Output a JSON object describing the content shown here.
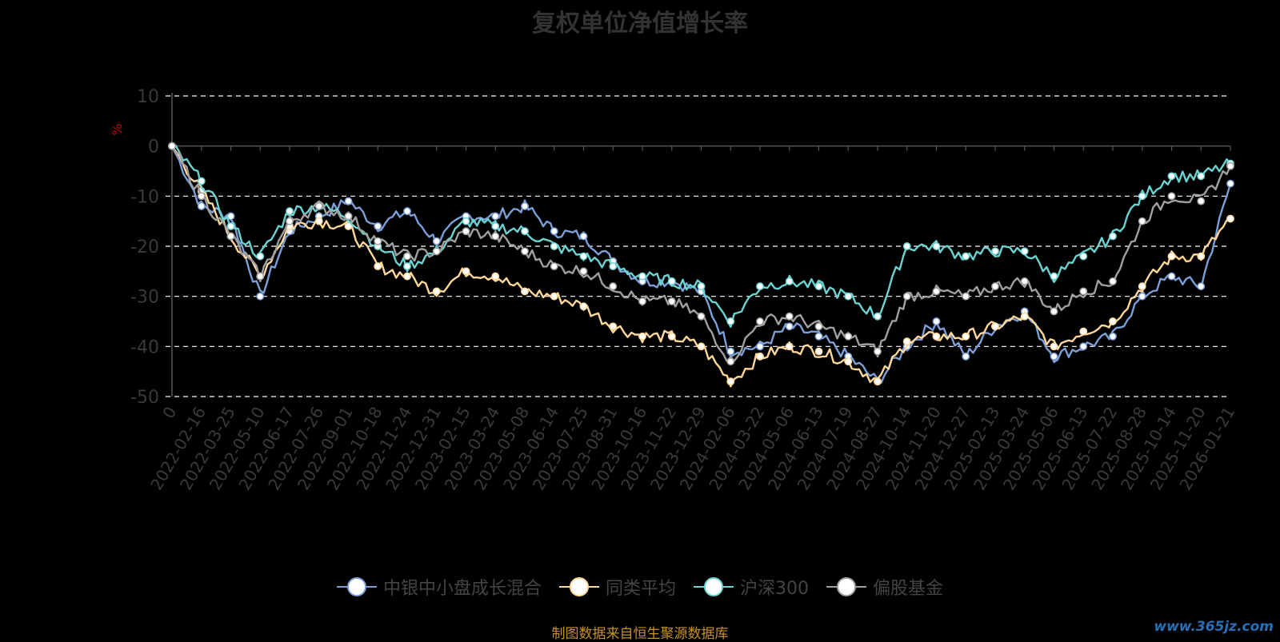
{
  "chart_data": {
    "type": "line",
    "title": "复权单位净值增长率",
    "ylabel": "%",
    "ylim": [
      -50,
      10
    ],
    "yticks": [
      10,
      0,
      -10,
      -20,
      -30,
      -40,
      -50
    ],
    "grid": true,
    "legend_position": "bottom",
    "x_tick_labels": [
      "0",
      "2022-02-16",
      "2022-03-25",
      "2022-05-10",
      "2022-06-17",
      "2022-07-26",
      "2022-09-01",
      "2022-10-18",
      "2022-11-24",
      "2022-12-31",
      "2023-02-15",
      "2023-03-24",
      "2023-05-08",
      "2023-06-14",
      "2023-07-25",
      "2023-08-31",
      "2023-10-16",
      "2023-11-22",
      "2023-12-29",
      "2024-02-06",
      "2024-03-22",
      "2024-05-06",
      "2024-06-13",
      "2024-07-19",
      "2024-08-27",
      "2024-10-14",
      "2024-11-20",
      "2024-12-27",
      "2025-02-13",
      "2025-03-24",
      "2025-05-06",
      "2025-06-13",
      "2025-07-22",
      "2025-08-28",
      "2025-10-14",
      "2025-11-20",
      "2026-01-21"
    ],
    "series": [
      {
        "name": "中银中小盘成长混合",
        "color": "#7b9fd6",
        "values": [
          0,
          -12,
          -14,
          -30,
          -17,
          -14,
          -11,
          -16,
          -13,
          -19,
          -14,
          -14,
          -12,
          -17,
          -18,
          -23,
          -27,
          -27,
          -29,
          -41,
          -40,
          -36,
          -38,
          -42,
          -47,
          -40,
          -35,
          -42,
          -36,
          -33,
          -42,
          -40,
          -38,
          -30,
          -26,
          -28,
          -7.5
        ]
      },
      {
        "name": "同类平均",
        "color": "#ffd79a",
        "values": [
          0,
          -9,
          -18,
          -26,
          -16,
          -15,
          -16,
          -24,
          -26,
          -29,
          -25,
          -26,
          -29,
          -30,
          -32,
          -36,
          -38,
          -38,
          -40,
          -47,
          -42,
          -40,
          -41,
          -43,
          -47,
          -39,
          -38,
          -38,
          -36,
          -34,
          -40,
          -37,
          -35,
          -28,
          -22,
          -22,
          -14.5
        ]
      },
      {
        "name": "沪深300",
        "color": "#6cd3d3",
        "values": [
          0,
          -7,
          -16,
          -22,
          -13,
          -12,
          -14,
          -20,
          -24,
          -21,
          -15,
          -16,
          -17,
          -20,
          -22,
          -24,
          -26,
          -27,
          -28,
          -35,
          -28,
          -27,
          -28,
          -30,
          -34,
          -20,
          -20,
          -22,
          -21,
          -21,
          -26,
          -22,
          -18,
          -10,
          -6,
          -6,
          -3.5
        ]
      },
      {
        "name": "偏股基金",
        "color": "#a0a0a0",
        "values": [
          0,
          -10,
          -18,
          -26,
          -15,
          -12,
          -14,
          -19,
          -22,
          -21,
          -17,
          -18,
          -21,
          -24,
          -25,
          -28,
          -31,
          -31,
          -34,
          -43,
          -35,
          -34,
          -36,
          -38,
          -41,
          -30,
          -29,
          -30,
          -28,
          -27,
          -33,
          -29,
          -27,
          -15,
          -10,
          -11,
          -4
        ]
      }
    ]
  },
  "legend_items": [
    "中银中小盘成长混合",
    "同类平均",
    "沪深300",
    "偏股基金"
  ],
  "source_note": "制图数据来自恒生聚源数据库",
  "watermark": "www.365jz.com"
}
